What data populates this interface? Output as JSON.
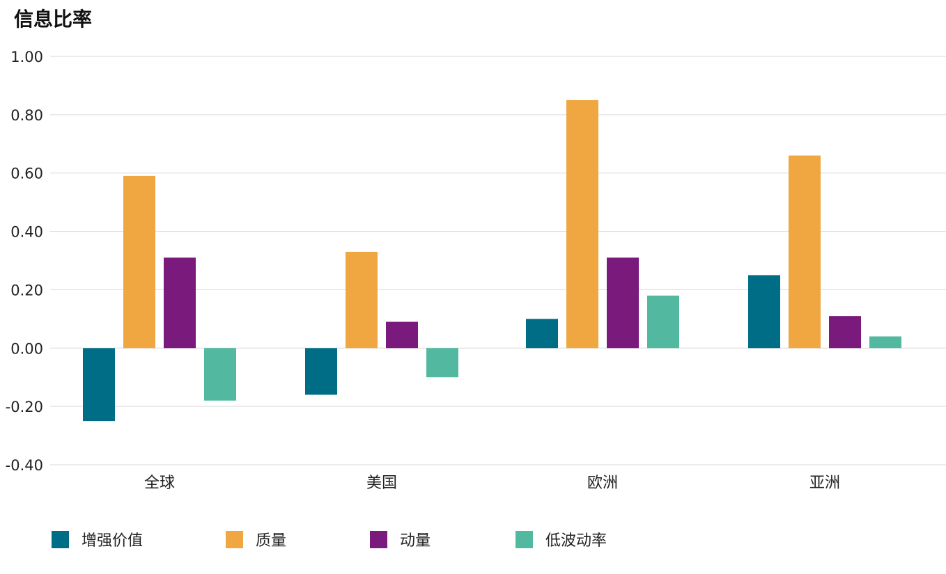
{
  "chart_data": {
    "type": "bar",
    "title": "信息比率",
    "xlabel": "",
    "ylabel": "",
    "categories": [
      "全球",
      "美国",
      "欧洲",
      "亚洲"
    ],
    "series": [
      {
        "name": "增强价值",
        "color": "#006D87",
        "values": [
          -0.25,
          -0.16,
          0.1,
          0.25
        ]
      },
      {
        "name": "质量",
        "color": "#F0A742",
        "values": [
          0.59,
          0.33,
          0.85,
          0.66
        ]
      },
      {
        "name": "动量",
        "color": "#7A1A7D",
        "values": [
          0.31,
          0.09,
          0.31,
          0.11
        ]
      },
      {
        "name": "低波动率",
        "color": "#52B9A0",
        "values": [
          -0.18,
          -0.1,
          0.18,
          0.04
        ]
      }
    ],
    "ylim": [
      -0.4,
      1.0
    ],
    "yticks": [
      "1.00",
      "0.80",
      "0.60",
      "0.40",
      "0.20",
      "0.00",
      "-0.20",
      "-0.40"
    ],
    "grid": true,
    "legend_position": "bottom-left"
  }
}
